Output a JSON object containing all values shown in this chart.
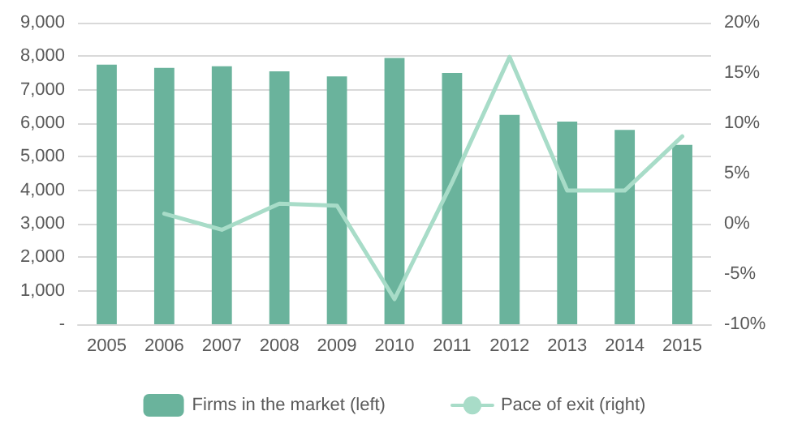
{
  "chart_data": {
    "type": "bar",
    "categories": [
      "2005",
      "2006",
      "2007",
      "2008",
      "2009",
      "2010",
      "2011",
      "2012",
      "2013",
      "2014",
      "2015"
    ],
    "series": [
      {
        "name": "Firms in the market (left)",
        "color": "#6ab39c",
        "values": [
          7750,
          7650,
          7700,
          7550,
          7400,
          7950,
          7500,
          6250,
          6050,
          5800,
          5350
        ]
      },
      {
        "name": "Pace of exit (right)",
        "type": "line",
        "axis": "y2",
        "color": "#a8dcc8",
        "values": [
          null,
          1.0,
          -0.6,
          2.0,
          1.8,
          -7.5,
          4.1,
          16.6,
          3.3,
          3.3,
          8.7
        ]
      }
    ],
    "ylim": [
      0,
      9000
    ],
    "yticks": [
      {
        "value": 0,
        "label": "-"
      },
      {
        "value": 1000,
        "label": "1,000"
      },
      {
        "value": 2000,
        "label": "2,000"
      },
      {
        "value": 3000,
        "label": "3,000"
      },
      {
        "value": 4000,
        "label": "4,000"
      },
      {
        "value": 5000,
        "label": "5,000"
      },
      {
        "value": 6000,
        "label": "6,000"
      },
      {
        "value": 7000,
        "label": "7,000"
      },
      {
        "value": 8000,
        "label": "8,000"
      },
      {
        "value": 9000,
        "label": "9,000"
      }
    ],
    "y2lim": [
      -10,
      20
    ],
    "y2ticks": [
      {
        "value": -10,
        "label": "-10%"
      },
      {
        "value": -5,
        "label": "-5%"
      },
      {
        "value": 0,
        "label": "0%"
      },
      {
        "value": 5,
        "label": "5%"
      },
      {
        "value": 10,
        "label": "10%"
      },
      {
        "value": 15,
        "label": "15%"
      },
      {
        "value": 20,
        "label": "20%"
      }
    ],
    "grid": "y",
    "legend": "bottom",
    "marker": "none",
    "line_style": "solid"
  }
}
